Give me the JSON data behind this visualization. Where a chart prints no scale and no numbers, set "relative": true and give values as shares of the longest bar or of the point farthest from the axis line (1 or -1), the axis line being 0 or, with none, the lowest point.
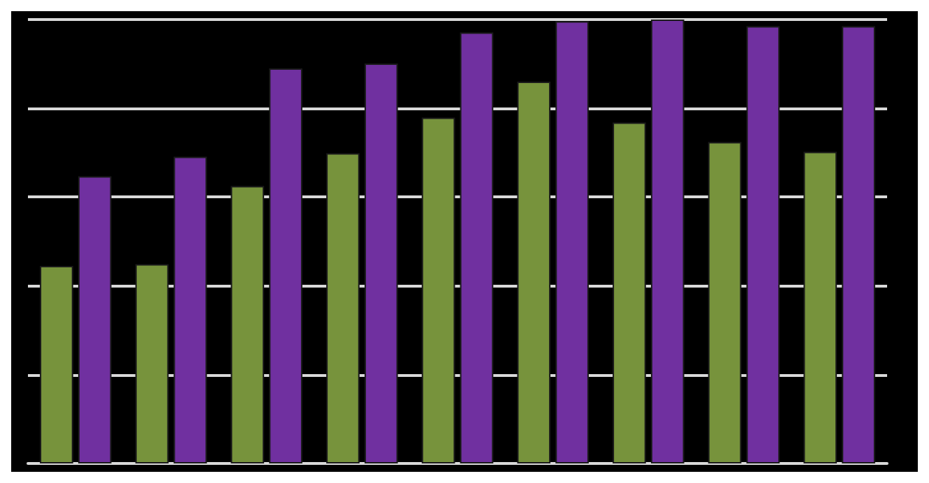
{
  "chart_data": {
    "type": "bar",
    "relative": true,
    "grid": "y",
    "categories": [
      null,
      null,
      null,
      null,
      null,
      null,
      null,
      null,
      null
    ],
    "series": [
      {
        "color": "#77933c",
        "values": [
          0.445,
          0.449,
          0.625,
          0.699,
          0.779,
          0.86,
          0.768,
          0.724,
          0.702
        ]
      },
      {
        "color": "#7030a0",
        "values": [
          0.647,
          0.691,
          0.89,
          0.901,
          0.971,
          0.996,
          1,
          0.985,
          0.985
        ]
      }
    ]
  }
}
